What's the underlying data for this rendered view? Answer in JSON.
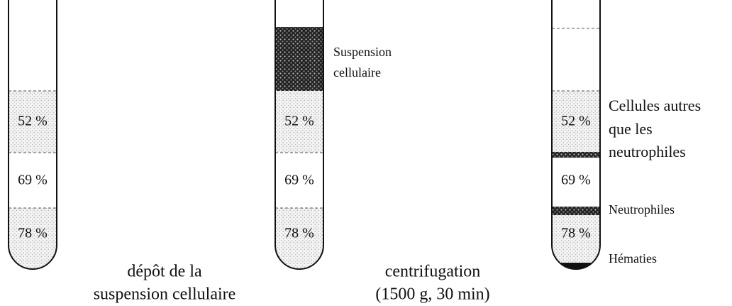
{
  "tubes": [
    {
      "layers": [
        "52 %",
        "69 %",
        "78 %"
      ]
    },
    {
      "layers": [
        "52 %",
        "69 %",
        "78 %"
      ],
      "annotation": [
        "Suspension",
        "cellulaire"
      ]
    },
    {
      "layers": [
        "52 %",
        "69 %",
        "78 %"
      ],
      "annotations": {
        "upper": [
          "Cellules autres",
          "que les",
          "neutrophiles"
        ],
        "middle": "Neutrophiles",
        "bottom": "Hématies"
      }
    }
  ],
  "steps": [
    [
      "dépôt de la",
      "suspension cellulaire"
    ],
    [
      "centrifugation",
      "(1500 g, 30 min)"
    ]
  ]
}
